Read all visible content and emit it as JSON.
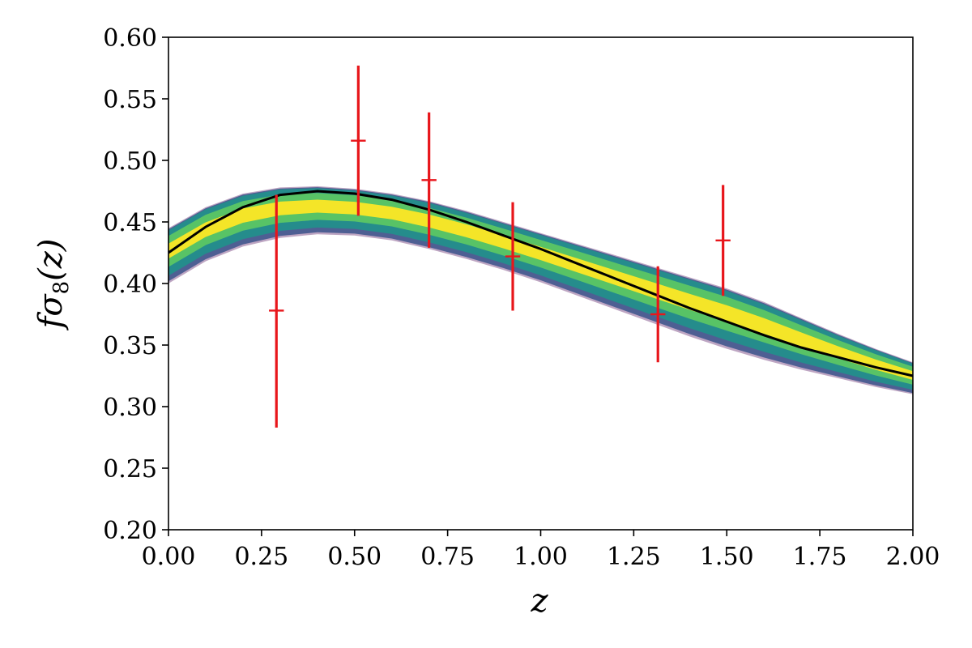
{
  "chart_data": {
    "type": "line",
    "title": "",
    "xlabel": "z",
    "ylabel": "fσ8(z)",
    "xlim": [
      0,
      2
    ],
    "ylim": [
      0.2,
      0.6
    ],
    "grid": false,
    "x_ticks": [
      "0.00",
      "0.25",
      "0.50",
      "0.75",
      "1.00",
      "1.25",
      "1.50",
      "1.75",
      "2.00"
    ],
    "y_ticks": [
      "0.20",
      "0.25",
      "0.30",
      "0.35",
      "0.40",
      "0.45",
      "0.50",
      "0.55",
      "0.60"
    ],
    "x_tick_values": [
      0,
      0.25,
      0.5,
      0.75,
      1.0,
      1.25,
      1.5,
      1.75,
      2.0
    ],
    "y_tick_values": [
      0.2,
      0.25,
      0.3,
      0.35,
      0.4,
      0.45,
      0.5,
      0.55,
      0.6
    ],
    "colors": {
      "best_fit": "#000000",
      "error_bars": "#e8161b",
      "band_colormap": [
        "#440154",
        "#3b528b",
        "#21918c",
        "#5ec962",
        "#fde725"
      ]
    },
    "best_fit": {
      "x": [
        0.0,
        0.1,
        0.2,
        0.3,
        0.4,
        0.5,
        0.6,
        0.7,
        0.8,
        0.9,
        1.0,
        1.1,
        1.2,
        1.3,
        1.4,
        1.5,
        1.6,
        1.7,
        1.8,
        1.9,
        2.0
      ],
      "y": [
        0.425,
        0.446,
        0.462,
        0.472,
        0.475,
        0.473,
        0.468,
        0.46,
        0.45,
        0.439,
        0.428,
        0.416,
        0.404,
        0.392,
        0.38,
        0.369,
        0.358,
        0.348,
        0.34,
        0.332,
        0.325
      ]
    },
    "band": {
      "x": [
        0.0,
        0.1,
        0.2,
        0.3,
        0.4,
        0.5,
        0.6,
        0.7,
        0.8,
        0.9,
        1.0,
        1.1,
        1.2,
        1.3,
        1.4,
        1.5,
        1.6,
        1.7,
        1.8,
        1.9,
        2.0
      ],
      "lower": [
        0.4,
        0.418,
        0.43,
        0.437,
        0.44,
        0.439,
        0.435,
        0.428,
        0.42,
        0.411,
        0.401,
        0.39,
        0.379,
        0.368,
        0.357,
        0.347,
        0.338,
        0.33,
        0.323,
        0.316,
        0.31
      ],
      "upper": [
        0.445,
        0.462,
        0.473,
        0.478,
        0.479,
        0.477,
        0.473,
        0.467,
        0.459,
        0.45,
        0.441,
        0.432,
        0.423,
        0.414,
        0.405,
        0.396,
        0.385,
        0.372,
        0.359,
        0.347,
        0.336
      ]
    },
    "data_points": [
      {
        "z": 0.29,
        "y": 0.378,
        "yerr_low": 0.283,
        "yerr_high": 0.472,
        "xerr": 0.02
      },
      {
        "z": 0.51,
        "y": 0.516,
        "yerr_low": 0.455,
        "yerr_high": 0.577,
        "xerr": 0.02
      },
      {
        "z": 0.7,
        "y": 0.484,
        "yerr_low": 0.429,
        "yerr_high": 0.539,
        "xerr": 0.02
      },
      {
        "z": 0.925,
        "y": 0.422,
        "yerr_low": 0.378,
        "yerr_high": 0.466,
        "xerr": 0.02
      },
      {
        "z": 1.315,
        "y": 0.375,
        "yerr_low": 0.336,
        "yerr_high": 0.414,
        "xerr": 0.02
      },
      {
        "z": 1.49,
        "y": 0.435,
        "yerr_low": 0.39,
        "yerr_high": 0.48,
        "xerr": 0.02
      }
    ]
  }
}
